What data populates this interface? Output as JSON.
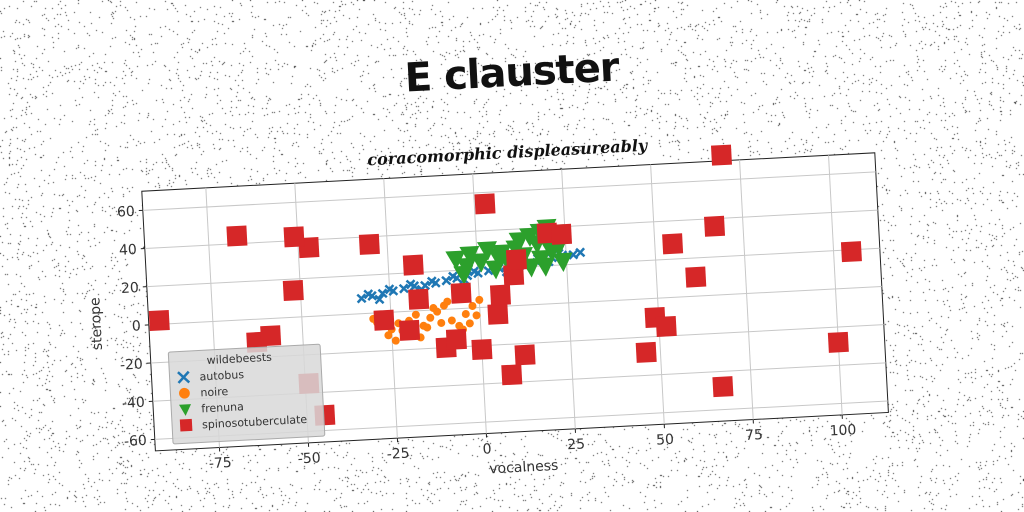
{
  "title": "E clauster",
  "chart_data": {
    "type": "scatter",
    "subtitle": "coracomorphic displeasureably",
    "xlabel": "vocalness",
    "ylabel": "sterope",
    "xlim": [
      -93,
      113
    ],
    "ylim": [
      -66,
      70
    ],
    "xticks": [
      -75,
      -50,
      -25,
      0,
      25,
      50,
      75,
      100
    ],
    "yticks": [
      -60,
      -40,
      -20,
      0,
      20,
      40,
      60
    ],
    "grid": true,
    "legend": {
      "position": "bottom-left",
      "title": "wildebeests",
      "entries": [
        "autobus",
        "noire",
        "frenuna",
        "spinosotuberculate"
      ]
    },
    "series": [
      {
        "name": "autobus",
        "marker": "x",
        "color": "#1f77b4",
        "points": [
          [
            -33,
            8
          ],
          [
            -30,
            9
          ],
          [
            -27,
            10
          ],
          [
            -24,
            11
          ],
          [
            -21,
            12
          ],
          [
            -18,
            13
          ],
          [
            -15,
            13
          ],
          [
            -12,
            14
          ],
          [
            -9,
            15
          ],
          [
            -6,
            16
          ],
          [
            -3,
            17
          ],
          [
            0,
            18
          ],
          [
            3,
            19
          ],
          [
            6,
            20
          ],
          [
            9,
            20
          ],
          [
            12,
            21
          ],
          [
            15,
            22
          ],
          [
            18,
            23
          ],
          [
            21,
            24
          ],
          [
            24,
            25
          ],
          [
            27,
            25
          ],
          [
            29,
            26
          ],
          [
            -31,
            10
          ],
          [
            -25,
            12
          ],
          [
            -19,
            14
          ],
          [
            -13,
            15
          ],
          [
            -7,
            17
          ],
          [
            -1,
            19
          ],
          [
            5,
            21
          ],
          [
            11,
            22
          ],
          [
            17,
            24
          ],
          [
            23,
            26
          ],
          [
            -28,
            7
          ],
          [
            -16,
            11
          ],
          [
            -4,
            15
          ],
          [
            8,
            18
          ],
          [
            20,
            22
          ]
        ]
      },
      {
        "name": "noire",
        "marker": "o",
        "color": "#ff7f0e",
        "points": [
          [
            -30,
            -3
          ],
          [
            -28,
            -7
          ],
          [
            -26,
            -12
          ],
          [
            -24,
            -15
          ],
          [
            -22,
            -10
          ],
          [
            -20,
            -5
          ],
          [
            -18,
            -2
          ],
          [
            -16,
            -8
          ],
          [
            -14,
            -4
          ],
          [
            -12,
            -1
          ],
          [
            -10,
            2
          ],
          [
            -8,
            -6
          ],
          [
            -6,
            -9
          ],
          [
            -4,
            -3
          ],
          [
            -2,
            1
          ],
          [
            0,
            4
          ],
          [
            -27,
            -1
          ],
          [
            -23,
            -6
          ],
          [
            -19,
            -12
          ],
          [
            -15,
            -9
          ],
          [
            -11,
            -7
          ],
          [
            -7,
            -13
          ],
          [
            -3,
            -8
          ],
          [
            -9,
            4
          ],
          [
            -13,
            1
          ],
          [
            -17,
            -14
          ],
          [
            -5,
            -11
          ],
          [
            -21,
            -13
          ],
          [
            -25,
            -9
          ],
          [
            -29,
            -5
          ],
          [
            -1,
            -4
          ]
        ]
      },
      {
        "name": "frenuna",
        "marker": "v",
        "color": "#2ca02c",
        "points": [
          [
            -6,
            26
          ],
          [
            -2,
            28
          ],
          [
            3,
            30
          ],
          [
            6,
            26
          ],
          [
            9,
            24
          ],
          [
            12,
            34
          ],
          [
            15,
            36
          ],
          [
            18,
            38
          ],
          [
            20,
            40
          ],
          [
            22,
            37
          ],
          [
            5,
            20
          ],
          [
            9,
            22
          ],
          [
            15,
            20
          ],
          [
            18,
            24
          ],
          [
            21,
            28
          ],
          [
            24,
            22
          ],
          [
            7,
            28
          ],
          [
            13,
            26
          ],
          [
            -3,
            22
          ],
          [
            1,
            24
          ],
          [
            11,
            30
          ],
          [
            17,
            32
          ],
          [
            23,
            30
          ],
          [
            19,
            20
          ],
          [
            -4,
            18
          ]
        ]
      },
      {
        "name": "spinosotuberculate",
        "marker": "s",
        "color": "#d62728",
        "points": [
          [
            -90,
            2
          ],
          [
            -67,
            44
          ],
          [
            -63,
            -12
          ],
          [
            -59,
            -9
          ],
          [
            -52,
            14
          ],
          [
            -49,
            -35
          ],
          [
            -47,
            36
          ],
          [
            -51,
            42
          ],
          [
            -45,
            -52
          ],
          [
            -30,
            36
          ],
          [
            -27,
            -4
          ],
          [
            -20,
            -10
          ],
          [
            -18,
            24
          ],
          [
            -17,
            6
          ],
          [
            -10,
            -20
          ],
          [
            -7,
            -16
          ],
          [
            -5,
            8
          ],
          [
            0,
            -22
          ],
          [
            3,
            54
          ],
          [
            5,
            -4
          ],
          [
            8,
            -36
          ],
          [
            12,
            -26
          ],
          [
            10,
            16
          ],
          [
            11,
            24
          ],
          [
            20,
            37
          ],
          [
            24,
            36
          ],
          [
            46,
            -28
          ],
          [
            49,
            -10
          ],
          [
            52,
            -15
          ],
          [
            55,
            28
          ],
          [
            61,
            10
          ],
          [
            67,
            -48
          ],
          [
            67,
            36
          ],
          [
            70,
            73
          ],
          [
            100,
            -28
          ],
          [
            105,
            19
          ],
          [
            6,
            6
          ]
        ]
      }
    ]
  }
}
